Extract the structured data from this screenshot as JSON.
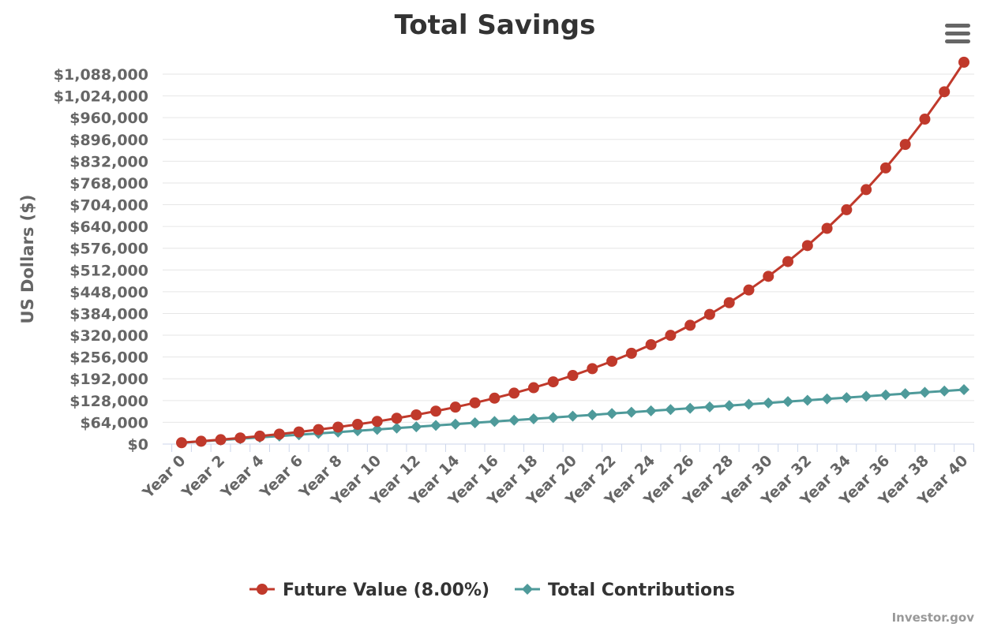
{
  "chart_data": {
    "type": "line",
    "title": "Total Savings",
    "ylabel": "US Dollars ($)",
    "xlabel": "",
    "ylim": [
      0,
      1088000
    ],
    "yticks": [
      "$0",
      "$64,000",
      "$128,000",
      "$192,000",
      "$256,000",
      "$320,000",
      "$384,000",
      "$448,000",
      "$512,000",
      "$576,000",
      "$640,000",
      "$704,000",
      "$768,000",
      "$832,000",
      "$896,000",
      "$960,000",
      "$1,024,000",
      "$1,088,000"
    ],
    "x": [
      "Year 0",
      "Year 1",
      "Year 2",
      "Year 3",
      "Year 4",
      "Year 5",
      "Year 6",
      "Year 7",
      "Year 8",
      "Year 9",
      "Year 10",
      "Year 11",
      "Year 12",
      "Year 13",
      "Year 14",
      "Year 15",
      "Year 16",
      "Year 17",
      "Year 18",
      "Year 19",
      "Year 20",
      "Year 21",
      "Year 22",
      "Year 23",
      "Year 24",
      "Year 25",
      "Year 26",
      "Year 27",
      "Year 28",
      "Year 29",
      "Year 30",
      "Year 31",
      "Year 32",
      "Year 33",
      "Year 34",
      "Year 35",
      "Year 36",
      "Year 37",
      "Year 38",
      "Year 39",
      "Year 40"
    ],
    "xtick_labels": [
      "Year 0",
      "Year 2",
      "Year 4",
      "Year 6",
      "Year 8",
      "Year 10",
      "Year 12",
      "Year 14",
      "Year 16",
      "Year 18",
      "Year 20",
      "Year 22",
      "Year 24",
      "Year 26",
      "Year 28",
      "Year 30",
      "Year 32",
      "Year 34",
      "Year 36",
      "Year 38",
      "Year 40"
    ],
    "grid": true,
    "legend_position": "bottom-center",
    "series": [
      {
        "name": "Future Value (8.00%)",
        "color": "#c0392b",
        "marker": "circle",
        "values": [
          4000,
          8320,
          12986,
          18024,
          23466,
          29343,
          35690,
          42545,
          49948,
          57944,
          66579,
          75905,
          85977,
          96856,
          108604,
          121292,
          134996,
          149795,
          165779,
          183041,
          201684,
          221819,
          243564,
          267049,
          292413,
          319806,
          349391,
          381342,
          415850,
          453118,
          493368,
          536837,
          583784,
          634487,
          689246,
          748386,
          812257,
          881237,
          955736,
          1036195,
          1123090
        ]
      },
      {
        "name": "Total Contributions",
        "color": "#4e9a9a",
        "marker": "diamond",
        "values": [
          4000,
          7900,
          11800,
          15700,
          19600,
          23500,
          27400,
          31300,
          35200,
          39100,
          43000,
          46900,
          50800,
          54700,
          58600,
          62500,
          66400,
          70300,
          74200,
          78100,
          82000,
          85900,
          89800,
          93700,
          97600,
          101500,
          105400,
          109300,
          113200,
          117100,
          121000,
          124900,
          128800,
          132700,
          136600,
          140500,
          144400,
          148300,
          152200,
          156100,
          160000
        ]
      }
    ]
  },
  "menu_icon": "hamburger-menu-icon",
  "credits": "Investor.gov"
}
